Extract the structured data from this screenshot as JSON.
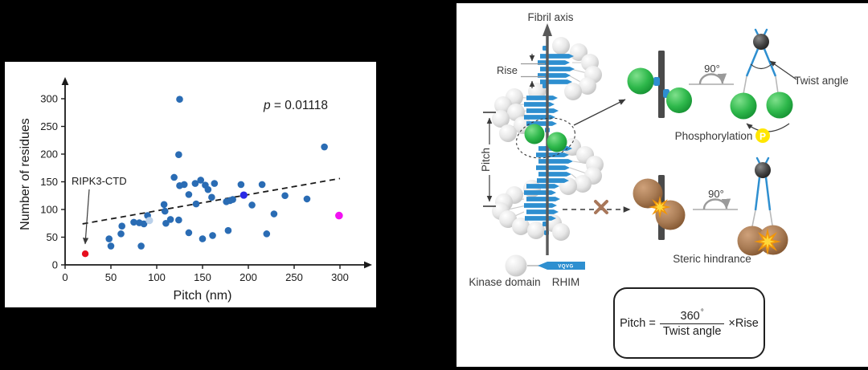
{
  "colors": {
    "background": "#000000",
    "panel": "#ffffff",
    "dot_blue": "#2a6cb4",
    "dot_light_blue": "#b9d0ea",
    "dot_dark_blue": "#2a2ae6",
    "dot_red": "#e60f1e",
    "dot_magenta": "#f211f2",
    "trendline_black": "#1a1a1a",
    "strand_blue": "#2e8fd0",
    "sphere_gray_edge": "#c9c9c9",
    "sphere_green": "#27ad43",
    "sphere_brown": "#a0714a",
    "sphere_black": "#383838",
    "star_orange": "#f0950a",
    "star_yellow": "#ffd83a",
    "phospho_yellow": "#ffe600",
    "diagram_ink": "#3a3a3a",
    "rotation_gray": "#9a9a9a"
  },
  "chart_data": {
    "type": "scatter",
    "title": "",
    "xlabel": "Pitch (nm)",
    "ylabel": "Number of residues",
    "xlim": [
      0,
      330
    ],
    "ylim": [
      0,
      330
    ],
    "xticks": [
      0,
      50,
      100,
      150,
      200,
      250,
      300
    ],
    "yticks": [
      0,
      50,
      100,
      150,
      200,
      250,
      300
    ],
    "grid": false,
    "annotation_var": "p",
    "annotation_rest": " = 0.01118",
    "point_label": {
      "text": "RIPK3-CTD",
      "target_x": 22,
      "target_y": 20
    },
    "trendline": {
      "style": "dashed",
      "x": [
        19,
        300
      ],
      "y": [
        74,
        156
      ]
    },
    "series": [
      {
        "name": "amyloid-fibril-structures",
        "color": "#2a6cb4",
        "radius": 4.3,
        "points": [
          [
            48,
            47
          ],
          [
            50,
            34
          ],
          [
            61,
            56
          ],
          [
            62,
            70
          ],
          [
            75,
            77
          ],
          [
            81,
            76
          ],
          [
            86,
            74
          ],
          [
            90,
            89
          ],
          [
            83,
            34
          ],
          [
            108,
            109
          ],
          [
            109,
            97
          ],
          [
            110,
            75
          ],
          [
            115,
            82
          ],
          [
            124,
            81
          ],
          [
            119,
            158
          ],
          [
            124,
            199
          ],
          [
            125,
            299
          ],
          [
            125,
            143
          ],
          [
            130,
            145
          ],
          [
            135,
            127
          ],
          [
            135,
            58
          ],
          [
            142,
            147
          ],
          [
            143,
            110
          ],
          [
            148,
            153
          ],
          [
            150,
            47
          ],
          [
            153,
            144
          ],
          [
            156,
            136
          ],
          [
            160,
            122
          ],
          [
            161,
            53
          ],
          [
            163,
            147
          ],
          [
            176,
            114
          ],
          [
            180,
            116
          ],
          [
            183,
            118
          ],
          [
            178,
            62
          ],
          [
            192,
            145
          ],
          [
            204,
            108
          ],
          [
            215,
            145
          ],
          [
            220,
            56
          ],
          [
            228,
            92
          ],
          [
            240,
            125
          ],
          [
            264,
            119
          ],
          [
            283,
            213
          ]
        ]
      },
      {
        "name": "light-blue-point",
        "color": "#b9d0ea",
        "radius": 4.6,
        "points": [
          [
            92,
            80
          ]
        ]
      },
      {
        "name": "dark-blue-point",
        "color": "#2a2ae6",
        "radius": 4.6,
        "points": [
          [
            195,
            126
          ]
        ]
      },
      {
        "name": "magenta-point",
        "color": "#f211f2",
        "radius": 4.8,
        "points": [
          [
            299,
            89
          ]
        ]
      },
      {
        "name": "RIPK3-CTD-point",
        "color": "#e60f1e",
        "radius": 4.2,
        "points": [
          [
            22,
            20
          ]
        ]
      }
    ]
  },
  "diagram": {
    "fibril_axis_label": "Fibril axis",
    "rise_label": "Rise",
    "pitch_label": "Pitch",
    "rotation_top": "90°",
    "rotation_bottom": "90°",
    "twist_angle_label": "Twist angle",
    "phosphorylation_label": "Phosphorylation",
    "phospho_symbol": "P",
    "steric_label": "Steric hindrance",
    "kinase_label": "Kinase domain",
    "rhim_label": "RHIM",
    "rhim_motif": "VQVG",
    "formula": {
      "lhs": "Pitch =",
      "numerator": "360",
      "degree": "°",
      "denominator": "Twist angle",
      "times": "×",
      "rhs": "Rise"
    }
  }
}
